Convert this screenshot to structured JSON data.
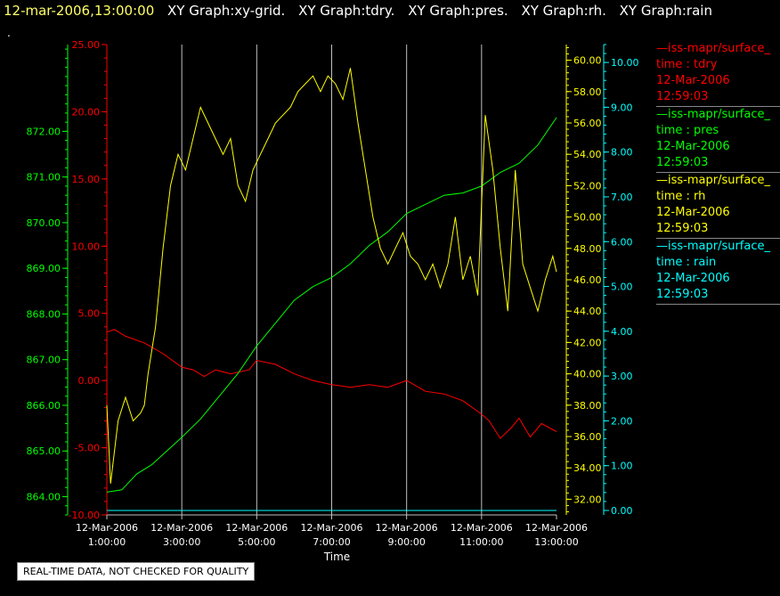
{
  "header": {
    "timestamp": "12-mar-2006,13:00:00",
    "graph_titles": [
      "XY Graph:xy-grid.",
      "XY Graph:tdry.",
      "XY Graph:pres.",
      "XY Graph:rh.",
      "XY Graph:rain"
    ]
  },
  "marker": ".",
  "notice": "REAL-TIME DATA, NOT CHECKED FOR QUALITY",
  "colors": {
    "tdry": "#ff0000",
    "pres": "#00ff00",
    "rh": "#ffff00",
    "rain": "#00ffff",
    "grid": "#c0c0c0"
  },
  "legend": [
    {
      "name": "—iss-mapr/surface_",
      "field": "time : tdry",
      "date": "12-Mar-2006",
      "time": "12:59:03",
      "color": "#ff0000"
    },
    {
      "name": "—iss-mapr/surface_",
      "field": "time : pres",
      "date": "12-Mar-2006",
      "time": "12:59:03",
      "color": "#00ff00"
    },
    {
      "name": "—iss-mapr/surface_",
      "field": "time : rh",
      "date": "12-Mar-2006",
      "time": "12:59:03",
      "color": "#ffff00"
    },
    {
      "name": "—iss-mapr/surface_",
      "field": "time : rain",
      "date": "12-Mar-2006",
      "time": "12:59:03",
      "color": "#00ffff"
    }
  ],
  "chart_data": {
    "type": "line",
    "xlabel": "Time",
    "xlim": [
      "12-Mar-2006 01:00:00",
      "12-Mar-2006 13:00:00"
    ],
    "x_ticks": [
      {
        "date": "12-Mar-2006",
        "time": "1:00:00",
        "hour": 1
      },
      {
        "date": "12-Mar-2006",
        "time": "3:00:00",
        "hour": 3
      },
      {
        "date": "12-Mar-2006",
        "time": "5:00:00",
        "hour": 5
      },
      {
        "date": "12-Mar-2006",
        "time": "7:00:00",
        "hour": 7
      },
      {
        "date": "12-Mar-2006",
        "time": "9:00:00",
        "hour": 9
      },
      {
        "date": "12-Mar-2006",
        "time": "11:00:00",
        "hour": 11
      },
      {
        "date": "12-Mar-2006",
        "time": "13:00:00",
        "hour": 13
      }
    ],
    "grid": true,
    "axes": {
      "pres": {
        "side": "left",
        "range": [
          863.6,
          873.9
        ],
        "ticks": [
          "864.00",
          "865.00",
          "866.00",
          "867.00",
          "868.00",
          "869.00",
          "870.00",
          "871.00",
          "872.00"
        ]
      },
      "tdry": {
        "side": "left",
        "range": [
          -10.0,
          25.0
        ],
        "ticks": [
          "-10.00",
          "-5.00",
          "0.00",
          "5.00",
          "10.00",
          "15.00",
          "20.00",
          "25.00"
        ]
      },
      "rh": {
        "side": "right",
        "range": [
          31.0,
          61.0
        ],
        "ticks": [
          "32.00",
          "34.00",
          "36.00",
          "38.00",
          "40.00",
          "42.00",
          "44.00",
          "46.00",
          "48.00",
          "50.00",
          "52.00",
          "54.00",
          "56.00",
          "58.00",
          "60.00"
        ]
      },
      "rain": {
        "side": "right",
        "range": [
          -0.1,
          10.4
        ],
        "ticks": [
          "0.00",
          "1.00",
          "2.00",
          "3.00",
          "4.00",
          "5.00",
          "6.00",
          "7.00",
          "8.00",
          "9.00",
          "10.00"
        ]
      }
    },
    "series": [
      {
        "name": "time : tdry",
        "axis": "tdry",
        "x": [
          1.0,
          1.2,
          1.5,
          2.0,
          2.5,
          3.0,
          3.3,
          3.6,
          3.9,
          4.3,
          4.8,
          5.0,
          5.5,
          6.0,
          6.5,
          7.0,
          7.5,
          8.0,
          8.5,
          9.0,
          9.5,
          10.0,
          10.5,
          11.0,
          11.2,
          11.5,
          11.8,
          12.0,
          12.3,
          12.6,
          13.0
        ],
        "y": [
          3.6,
          3.8,
          3.3,
          2.8,
          2.0,
          1.0,
          0.8,
          0.3,
          0.8,
          0.5,
          0.8,
          1.5,
          1.2,
          0.5,
          0.0,
          -0.3,
          -0.5,
          -0.3,
          -0.5,
          0.0,
          -0.8,
          -1.0,
          -1.5,
          -2.5,
          -3.0,
          -4.3,
          -3.5,
          -2.8,
          -4.2,
          -3.2,
          -3.8
        ]
      },
      {
        "name": "time : pres",
        "axis": "pres",
        "x": [
          1.0,
          1.4,
          1.8,
          2.2,
          2.6,
          3.0,
          3.5,
          4.0,
          4.5,
          5.0,
          5.5,
          6.0,
          6.5,
          7.0,
          7.5,
          8.0,
          8.5,
          9.0,
          9.5,
          10.0,
          10.5,
          11.0,
          11.5,
          12.0,
          12.5,
          13.0
        ],
        "y": [
          864.1,
          864.15,
          864.5,
          864.7,
          865.0,
          865.3,
          865.7,
          866.2,
          866.7,
          867.3,
          867.8,
          868.3,
          868.6,
          868.8,
          869.1,
          869.5,
          869.8,
          870.2,
          870.4,
          870.6,
          870.65,
          870.8,
          871.1,
          871.3,
          871.7,
          872.3
        ]
      },
      {
        "name": "time : rh",
        "axis": "rh",
        "x": [
          1.0,
          1.1,
          1.3,
          1.5,
          1.7,
          1.9,
          2.0,
          2.1,
          2.3,
          2.5,
          2.7,
          2.9,
          3.1,
          3.3,
          3.5,
          3.7,
          3.9,
          4.1,
          4.3,
          4.5,
          4.7,
          4.9,
          5.1,
          5.3,
          5.5,
          5.7,
          5.9,
          6.1,
          6.3,
          6.5,
          6.7,
          6.9,
          7.1,
          7.3,
          7.5,
          7.7,
          7.9,
          8.1,
          8.3,
          8.5,
          8.7,
          8.9,
          9.1,
          9.3,
          9.5,
          9.7,
          9.9,
          10.1,
          10.3,
          10.5,
          10.7,
          10.9,
          11.1,
          11.3,
          11.5,
          11.7,
          11.9,
          12.1,
          12.3,
          12.5,
          12.7,
          12.9,
          13.0
        ],
        "y": [
          38.0,
          33.0,
          37.0,
          38.5,
          37.0,
          37.5,
          38.0,
          40.0,
          43.0,
          48.0,
          52.0,
          54.0,
          53.0,
          55.0,
          57.0,
          56.0,
          55.0,
          54.0,
          55.0,
          52.0,
          51.0,
          53.0,
          54.0,
          55.0,
          56.0,
          56.5,
          57.0,
          58.0,
          58.5,
          59.0,
          58.0,
          59.0,
          58.5,
          57.5,
          59.5,
          56.0,
          53.0,
          50.0,
          48.0,
          47.0,
          48.0,
          49.0,
          47.5,
          47.0,
          46.0,
          47.0,
          45.5,
          47.0,
          50.0,
          46.0,
          47.5,
          45.0,
          56.5,
          53.0,
          48.0,
          44.0,
          53.0,
          47.0,
          45.5,
          44.0,
          46.0,
          47.5,
          46.5
        ]
      },
      {
        "name": "time : rain",
        "axis": "rain",
        "x": [
          1.0,
          13.0
        ],
        "y": [
          0.0,
          0.0
        ]
      }
    ]
  }
}
